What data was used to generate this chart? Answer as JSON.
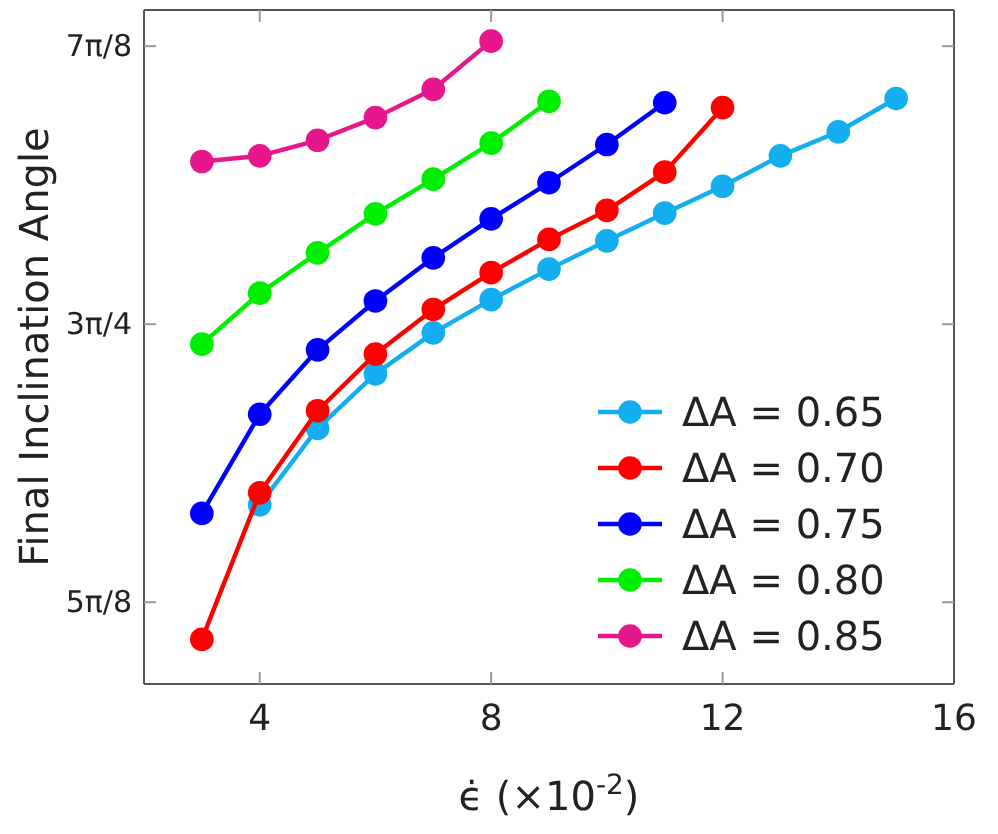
{
  "chart_data": {
    "type": "line",
    "xlabel": "ϵ̇ (×10$^{-2}$)",
    "ylabel": "Final Inclination Angle",
    "xlim": [
      2,
      16
    ],
    "xticks": [
      4,
      8,
      12,
      16
    ],
    "ylim": [
      1.848,
      2.8
    ],
    "yticks": [
      {
        "value": 1.9635,
        "label": "5π/8"
      },
      {
        "value": 2.3562,
        "label": "3π/4"
      },
      {
        "value": 2.7489,
        "label": "7π/8"
      }
    ],
    "grid": false,
    "legend": "bottom right",
    "marker": "circle",
    "line_style": "solid",
    "series": [
      {
        "name": "ΔA = 0.65",
        "color": "#12aef0",
        "x": [
          4,
          5,
          6,
          7,
          8,
          9,
          10,
          11,
          12,
          13,
          14,
          15
        ],
        "values": [
          2.101,
          2.209,
          2.286,
          2.344,
          2.391,
          2.434,
          2.474,
          2.513,
          2.551,
          2.594,
          2.628,
          2.675
        ]
      },
      {
        "name": "ΔA = 0.70",
        "color": "#ff0000",
        "x": [
          3,
          4,
          5,
          6,
          7,
          8,
          9,
          10,
          11,
          12
        ],
        "values": [
          1.911,
          2.118,
          2.234,
          2.314,
          2.377,
          2.429,
          2.476,
          2.517,
          2.571,
          2.662
        ]
      },
      {
        "name": "ΔA = 0.75",
        "color": "#0000ff",
        "x": [
          3,
          4,
          5,
          6,
          7,
          8,
          9,
          10,
          11
        ],
        "values": [
          2.089,
          2.229,
          2.32,
          2.389,
          2.45,
          2.505,
          2.556,
          2.61,
          2.669
        ]
      },
      {
        "name": "ΔA = 0.80",
        "color": "#00ee00",
        "x": [
          3,
          4,
          5,
          6,
          7,
          8,
          9
        ],
        "values": [
          2.328,
          2.4,
          2.457,
          2.512,
          2.561,
          2.612,
          2.671
        ]
      },
      {
        "name": "ΔA = 0.85",
        "color": "#e6178c",
        "x": [
          3,
          4,
          5,
          6,
          7,
          8
        ],
        "values": [
          2.586,
          2.594,
          2.616,
          2.648,
          2.688,
          2.756
        ]
      }
    ]
  }
}
